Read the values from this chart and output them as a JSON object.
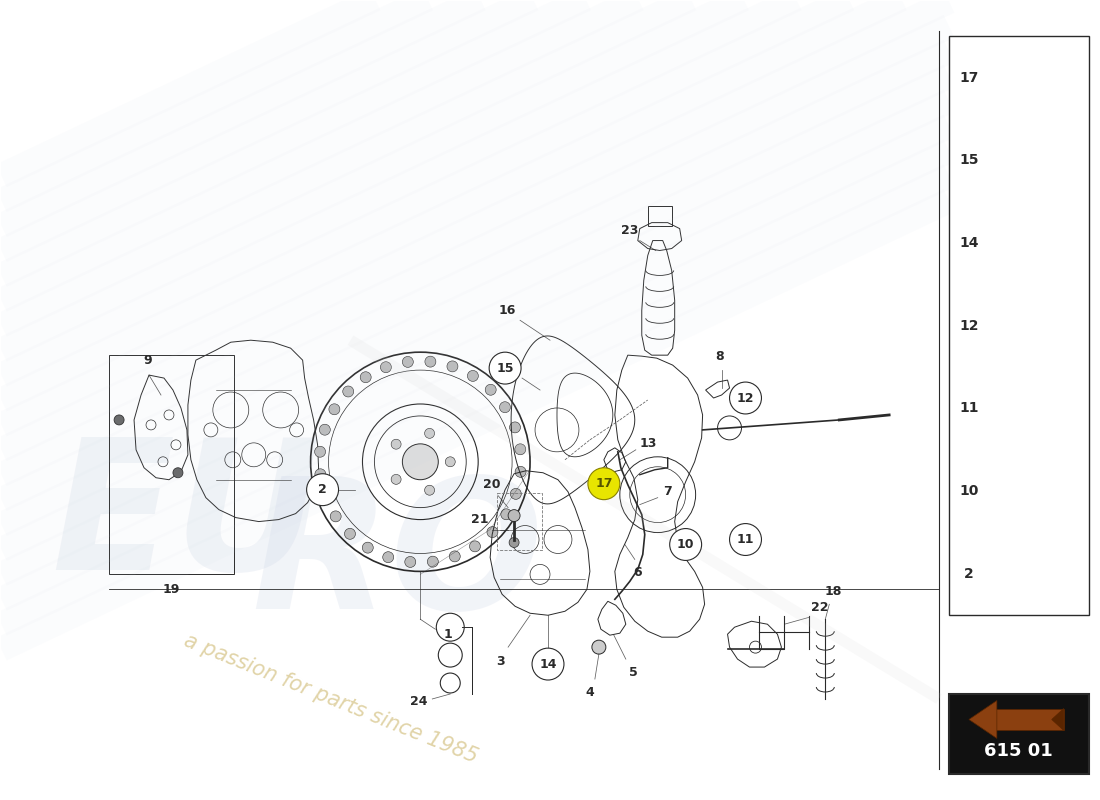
{
  "bg_color": "#ffffff",
  "line_color": "#2a2a2a",
  "part_number_text": "615 01",
  "parts_list": [
    {
      "num": "17"
    },
    {
      "num": "15"
    },
    {
      "num": "14"
    },
    {
      "num": "12"
    },
    {
      "num": "11"
    },
    {
      "num": "10"
    },
    {
      "num": "2"
    }
  ],
  "watermark_text1": "a passion for parts since 1985",
  "watermark_rot": -22
}
